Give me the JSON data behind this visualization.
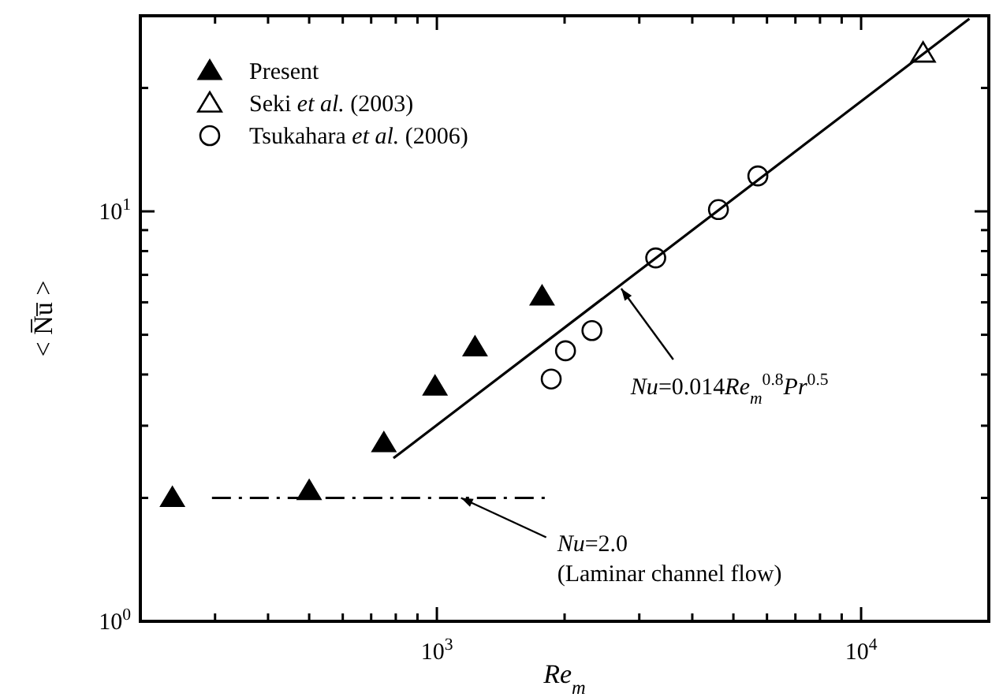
{
  "chart_data": {
    "type": "scatter",
    "xlabel": "Re$_{m}$",
    "ylabel": "< N̅u̅ >",
    "log": "xy",
    "legend": "top left",
    "xlim": [
      200,
      20000
    ],
    "ylim": [
      1,
      30
    ],
    "xticks": [
      {
        "value": 200,
        "label": null
      },
      {
        "value": 300,
        "label": null
      },
      {
        "value": 400,
        "label": null
      },
      {
        "value": 500,
        "label": null
      },
      {
        "value": 600,
        "label": null
      },
      {
        "value": 700,
        "label": null
      },
      {
        "value": 800,
        "label": null
      },
      {
        "value": 900,
        "label": null
      },
      {
        "value": 1000,
        "label": "10$^{3}$"
      },
      {
        "value": 2000,
        "label": null
      },
      {
        "value": 3000,
        "label": null
      },
      {
        "value": 4000,
        "label": null
      },
      {
        "value": 5000,
        "label": null
      },
      {
        "value": 6000,
        "label": null
      },
      {
        "value": 7000,
        "label": null
      },
      {
        "value": 8000,
        "label": null
      },
      {
        "value": 9000,
        "label": null
      },
      {
        "value": 10000,
        "label": "10$^{4}$"
      }
    ],
    "yticks": [
      {
        "value": 1,
        "label": "10$^{0}$"
      },
      {
        "value": 2,
        "label": null
      },
      {
        "value": 3,
        "label": null
      },
      {
        "value": 4,
        "label": null
      },
      {
        "value": 5,
        "label": null
      },
      {
        "value": 6,
        "label": null
      },
      {
        "value": 7,
        "label": null
      },
      {
        "value": 8,
        "label": null
      },
      {
        "value": 9,
        "label": null
      },
      {
        "value": 10,
        "label": "10$^{1}$"
      },
      {
        "value": 20,
        "label": null
      }
    ],
    "series": [
      {
        "name": "Present",
        "color": "#000000",
        "marker": "triangle",
        "x": [
          238,
          500,
          750,
          990,
          1230,
          1770
        ],
        "values": [
          2.0,
          2.08,
          2.72,
          3.74,
          4.66,
          6.2
        ]
      },
      {
        "name": "Seki et al. (2003)",
        "color": "#000000",
        "marker": "triangle-open",
        "x": [
          14000
        ],
        "values": [
          24.3
        ]
      },
      {
        "name": "Tsukahara et al. (2006)",
        "color": "#000000",
        "marker": "circle-open",
        "x": [
          1860,
          2010,
          2320,
          3280,
          4610,
          5710
        ],
        "values": [
          3.9,
          4.57,
          5.12,
          7.7,
          10.1,
          12.2
        ]
      },
      {
        "type": "line",
        "color": "#000000",
        "line_style": "solid",
        "x": [
          790,
          18000
        ],
        "values": [
          2.5,
          29.5
        ]
      },
      {
        "type": "line",
        "color": "#000000",
        "line_style": "dashdot",
        "x": [
          295,
          1800
        ],
        "values": [
          2.0,
          2.0
        ]
      }
    ],
    "annotations": [
      {
        "text": "Nu=0.014Re$_{m}$$^{0.8}$Pr$^{0.5}$",
        "x": 2720,
        "y": 6.48
      },
      {
        "text": "Nu=2.0\n(Laminar channel flow)",
        "x": 1140,
        "y": 2.0
      }
    ]
  }
}
